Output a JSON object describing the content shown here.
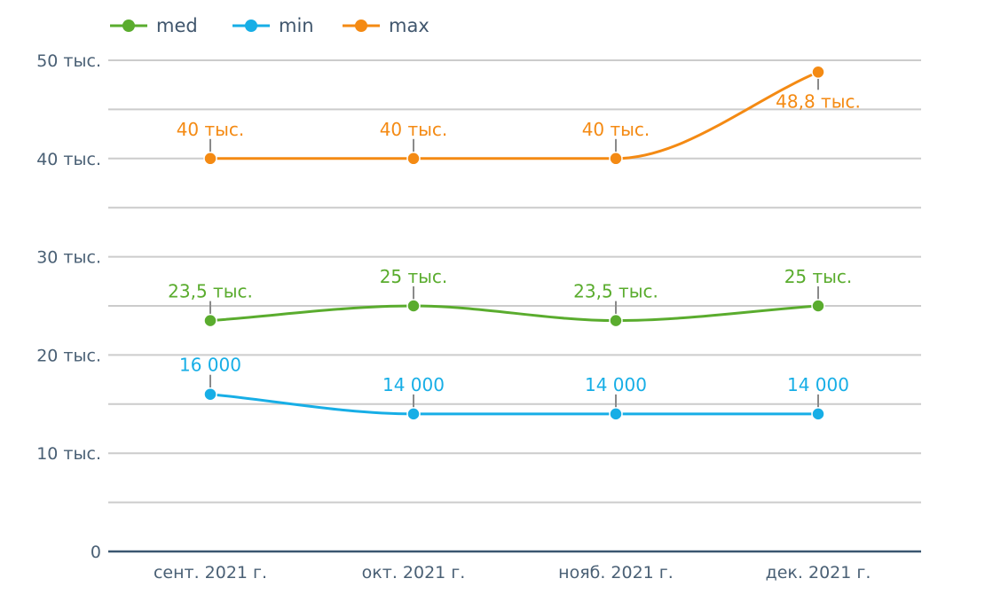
{
  "chart_data": {
    "type": "line",
    "title": "",
    "xlabel": "",
    "ylabel": "",
    "categories": [
      "сент. 2021 г.",
      "окт. 2021 г.",
      "нояб. 2021 г.",
      "дек. 2021 г."
    ],
    "ylim": [
      0,
      50000
    ],
    "y_ticks": [
      {
        "value": 0,
        "label": "0"
      },
      {
        "value": 10000,
        "label": "10 тыс."
      },
      {
        "value": 20000,
        "label": "20 тыс."
      },
      {
        "value": 30000,
        "label": "30 тыс."
      },
      {
        "value": 40000,
        "label": "40 тыс."
      },
      {
        "value": 50000,
        "label": "50 тыс."
      }
    ],
    "grid_step": 5000,
    "grid": true,
    "legend_position": "top-left",
    "series": [
      {
        "name": "med",
        "color": "#5aac2e",
        "values": [
          23500,
          25000,
          23500,
          25000
        ],
        "labels": [
          "23,5 тыс.",
          "25 тыс.",
          "23,5 тыс.",
          "25 тыс."
        ]
      },
      {
        "name": "min",
        "color": "#17aee6",
        "values": [
          16000,
          14000,
          14000,
          14000
        ],
        "labels": [
          "16 000",
          "14 000",
          "14 000",
          "14 000"
        ]
      },
      {
        "name": "max",
        "color": "#f48a13",
        "values": [
          40000,
          40000,
          40000,
          48800
        ],
        "labels": [
          "40 тыс.",
          "40 тыс.",
          "40 тыс.",
          "48,8 тыс."
        ]
      }
    ],
    "colors": {
      "grid": "#cccccc",
      "axis": "#3a5670",
      "tick_text": "#4a6075",
      "legend_text": "#40566d",
      "label_stem": "#8a8a8a"
    }
  }
}
